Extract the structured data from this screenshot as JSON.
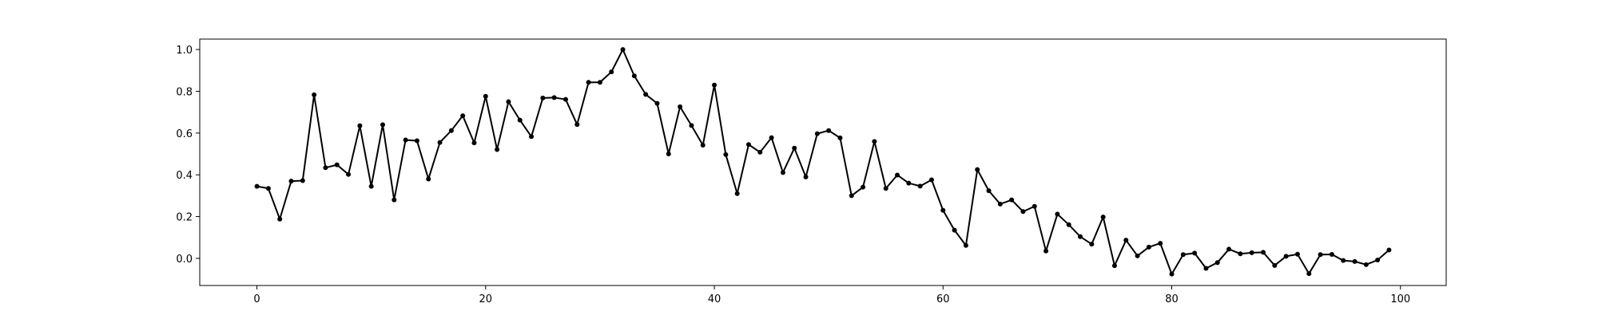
{
  "chart_data": {
    "type": "line",
    "title": "",
    "xlabel": "",
    "ylabel": "",
    "xlim": [
      -5,
      104
    ],
    "ylim": [
      -0.13,
      1.05
    ],
    "grid": false,
    "legend": "none",
    "xticks": [
      0,
      20,
      40,
      60,
      80,
      100
    ],
    "xtick_labels": [
      "0",
      "20",
      "40",
      "60",
      "80",
      "100"
    ],
    "yticks": [
      0.0,
      0.2,
      0.4,
      0.6,
      0.8,
      1.0
    ],
    "ytick_labels": [
      "0.0",
      "0.2",
      "0.4",
      "0.6",
      "0.8",
      "1.0"
    ],
    "series": [
      {
        "name": "series-1",
        "color": "#000000",
        "marker": "circle",
        "x": [
          0,
          1,
          2,
          3,
          4,
          5,
          6,
          7,
          8,
          9,
          10,
          11,
          12,
          13,
          14,
          15,
          16,
          17,
          18,
          19,
          20,
          21,
          22,
          23,
          24,
          25,
          26,
          27,
          28,
          29,
          30,
          31,
          32,
          33,
          34,
          35,
          36,
          37,
          38,
          39,
          40,
          41,
          42,
          43,
          44,
          45,
          46,
          47,
          48,
          49,
          50,
          51,
          52,
          53,
          54,
          55,
          56,
          57,
          58,
          59,
          60,
          61,
          62,
          63,
          64,
          65,
          66,
          67,
          68,
          69,
          70,
          71,
          72,
          73,
          74,
          75,
          76,
          77,
          78,
          79,
          80,
          81,
          82,
          83,
          84,
          85,
          86,
          87,
          88,
          89,
          90,
          91,
          92,
          93,
          94,
          95,
          96,
          97,
          98,
          99
        ],
        "values": [
          0.345,
          0.335,
          0.188,
          0.37,
          0.372,
          0.783,
          0.434,
          0.448,
          0.402,
          0.635,
          0.345,
          0.64,
          0.28,
          0.567,
          0.563,
          0.38,
          0.555,
          0.612,
          0.683,
          0.553,
          0.776,
          0.521,
          0.75,
          0.662,
          0.583,
          0.768,
          0.77,
          0.761,
          0.641,
          0.843,
          0.843,
          0.893,
          1.0,
          0.874,
          0.785,
          0.742,
          0.5,
          0.726,
          0.636,
          0.542,
          0.83,
          0.497,
          0.31,
          0.545,
          0.508,
          0.578,
          0.411,
          0.528,
          0.39,
          0.597,
          0.612,
          0.577,
          0.3,
          0.341,
          0.56,
          0.335,
          0.399,
          0.36,
          0.346,
          0.376,
          0.23,
          0.135,
          0.062,
          0.425,
          0.324,
          0.26,
          0.28,
          0.224,
          0.249,
          0.035,
          0.212,
          0.161,
          0.104,
          0.068,
          0.198,
          -0.035,
          0.087,
          0.012,
          0.054,
          0.072,
          -0.075,
          0.018,
          0.025,
          -0.048,
          -0.02,
          0.044,
          0.022,
          0.027,
          0.029,
          -0.034,
          0.01,
          0.02,
          -0.073,
          0.018,
          0.019,
          -0.01,
          -0.015,
          -0.03,
          -0.008,
          0.04
        ]
      }
    ]
  }
}
